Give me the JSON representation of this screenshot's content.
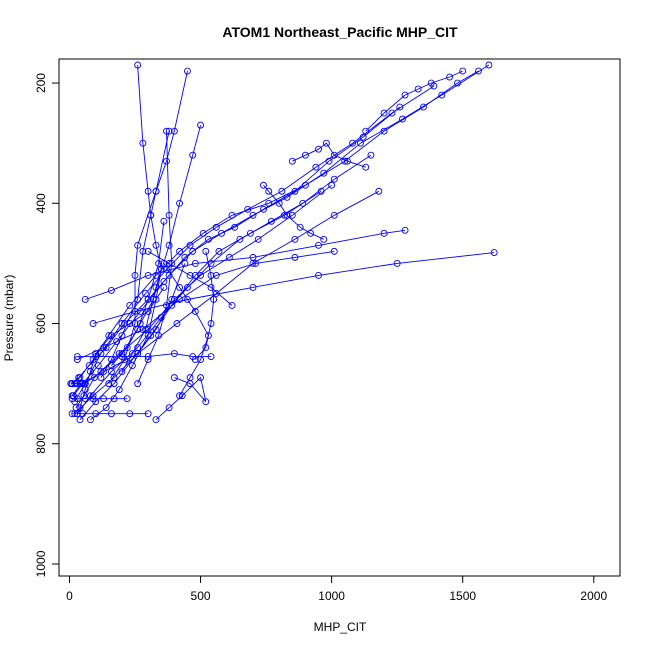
{
  "chart_data": {
    "type": "scatter",
    "title": "ATOM1 Northeast_Pacific MHP_CIT",
    "xlabel": "MHP_CIT",
    "ylabel": "Pressure (mbar)",
    "xlim": [
      -40,
      2100
    ],
    "ylim": [
      1020,
      160
    ],
    "y_reversed": true,
    "grid": false,
    "legend": "none",
    "xticks": [
      0,
      500,
      1000,
      1500,
      2000
    ],
    "yticks": [
      200,
      400,
      600,
      800,
      1000
    ],
    "xtick_labels": [
      "0",
      "500",
      "1000",
      "1500",
      "2000"
    ],
    "ytick_labels": [
      "200",
      "400",
      "600",
      "800",
      "1000"
    ],
    "series_color": "#0000ff",
    "series": [
      {
        "x": [
          10,
          40,
          90,
          150,
          230,
          330,
          420,
          510,
          620,
          760,
          900,
          1050,
          1200,
          1350,
          1480,
          1560
        ],
        "y": [
          700,
          690,
          660,
          620,
          570,
          520,
          480,
          450,
          420,
          400,
          370,
          330,
          280,
          240,
          200,
          180
        ]
      },
      {
        "x": [
          20,
          60,
          120,
          200,
          290,
          370,
          460,
          560,
          680,
          810,
          940,
          1080,
          1230,
          1390
        ],
        "y": [
          730,
          700,
          650,
          600,
          550,
          510,
          470,
          440,
          410,
          380,
          340,
          300,
          250,
          205
        ]
      },
      {
        "x": [
          30,
          80,
          160,
          260,
          350,
          450,
          540,
          650,
          770,
          890,
          1010,
          1150
        ],
        "y": [
          750,
          720,
          680,
          640,
          590,
          540,
          500,
          460,
          430,
          400,
          360,
          320
        ]
      },
      {
        "x": [
          15,
          50,
          110,
          180,
          270,
          360,
          440,
          530,
          630,
          740,
          860,
          990,
          1120,
          1260
        ],
        "y": [
          720,
          700,
          670,
          630,
          580,
          530,
          490,
          460,
          440,
          410,
          380,
          330,
          290,
          240
        ]
      },
      {
        "x": [
          40,
          100,
          170,
          240,
          310,
          390,
          480,
          570,
          690,
          820,
          960
        ],
        "y": [
          760,
          730,
          700,
          660,
          620,
          570,
          520,
          480,
          450,
          420,
          380
        ]
      },
      {
        "x": [
          5,
          35,
          75,
          140,
          210,
          300,
          380,
          470,
          580,
          700,
          830,
          970,
          1110,
          1270,
          1420,
          1600
        ],
        "y": [
          700,
          690,
          670,
          640,
          600,
          560,
          520,
          480,
          450,
          420,
          390,
          350,
          300,
          260,
          220,
          170
        ]
      },
      {
        "x": [
          25,
          55,
          95,
          190,
          300,
          400,
          500,
          610,
          720,
          850,
          1000
        ],
        "y": [
          740,
          720,
          690,
          650,
          610,
          560,
          520,
          490,
          460,
          420,
          370
        ]
      },
      {
        "x": [
          10,
          45,
          130,
          260,
          410,
          560,
          700,
          860,
          1010,
          1180
        ],
        "y": [
          720,
          700,
          680,
          650,
          600,
          550,
          500,
          460,
          420,
          380
        ]
      },
      {
        "x": [
          60,
          160,
          300,
          480,
          700,
          950,
          1200,
          1280
        ],
        "y": [
          560,
          545,
          520,
          500,
          490,
          470,
          450,
          445
        ]
      },
      {
        "x": [
          90,
          250,
          450,
          700,
          950,
          1250,
          1620
        ],
        "y": [
          600,
          580,
          560,
          540,
          520,
          500,
          482
        ]
      },
      {
        "x": [
          30,
          130,
          280,
          420,
          560,
          710,
          860,
          1010
        ],
        "y": [
          660,
          640,
          610,
          560,
          520,
          500,
          490,
          480
        ]
      },
      {
        "x": [
          620,
          540,
          460,
          380,
          300
        ],
        "y": [
          570,
          540,
          520,
          500,
          480
        ]
      },
      {
        "x": [
          120,
          160,
          200,
          260,
          280,
          310,
          330,
          370,
          400,
          450
        ],
        "y": [
          690,
          660,
          620,
          560,
          480,
          420,
          380,
          330,
          280,
          180
        ]
      },
      {
        "x": [
          200,
          240,
          290,
          330,
          380,
          420,
          470,
          500
        ],
        "y": [
          680,
          650,
          610,
          540,
          470,
          400,
          320,
          270
        ]
      },
      {
        "x": [
          160,
          220,
          270,
          320,
          350,
          330,
          310,
          300,
          280,
          260
        ],
        "y": [
          670,
          640,
          600,
          560,
          510,
          470,
          420,
          380,
          300,
          170
        ]
      },
      {
        "x": [
          260,
          300,
          340,
          370,
          390,
          380,
          370
        ],
        "y": [
          700,
          660,
          620,
          570,
          500,
          420,
          280
        ]
      },
      {
        "x": [
          150,
          210,
          250,
          250,
          260,
          330,
          380
        ],
        "y": [
          700,
          660,
          600,
          520,
          470,
          380,
          280
        ]
      },
      {
        "x": [
          40,
          60,
          80,
          100,
          160,
          230,
          300,
          360
        ],
        "y": [
          740,
          710,
          680,
          650,
          620,
          600,
          580,
          540
        ]
      },
      {
        "x": [
          20,
          90,
          170,
          260,
          330,
          390,
          440
        ],
        "y": [
          750,
          720,
          690,
          650,
          610,
          560,
          500
        ]
      },
      {
        "x": [
          60,
          120,
          200,
          260,
          300,
          340,
          360
        ],
        "y": [
          700,
          680,
          650,
          610,
          560,
          500,
          430
        ]
      },
      {
        "x": [
          80,
          140,
          190,
          240,
          300,
          330,
          350
        ],
        "y": [
          760,
          740,
          710,
          670,
          620,
          560,
          510
        ]
      },
      {
        "x": [
          420,
          460,
          500,
          530,
          480,
          420,
          360
        ],
        "y": [
          720,
          690,
          660,
          620,
          580,
          540,
          500
        ]
      },
      {
        "x": [
          330,
          380,
          430,
          500,
          520,
          460,
          400
        ],
        "y": [
          760,
          740,
          720,
          690,
          730,
          700,
          690
        ]
      },
      {
        "x": [
          480,
          520,
          540,
          550,
          540,
          520
        ],
        "y": [
          660,
          640,
          600,
          560,
          520,
          480
        ]
      },
      {
        "x": [
          10,
          20,
          30,
          40,
          50,
          60
        ],
        "y": [
          700,
          700,
          700,
          700,
          700,
          700
        ]
      },
      {
        "x": [
          10,
          30,
          60,
          90,
          130,
          170,
          220
        ],
        "y": [
          725,
          725,
          725,
          725,
          725,
          725,
          725
        ]
      },
      {
        "x": [
          10,
          50,
          100,
          160,
          230,
          300
        ],
        "y": [
          750,
          750,
          750,
          750,
          750,
          750
        ]
      },
      {
        "x": [
          30,
          100,
          200,
          300,
          400,
          470,
          540
        ],
        "y": [
          655,
          655,
          655,
          655,
          650,
          655,
          655
        ]
      },
      {
        "x": [
          850,
          900,
          950,
          980,
          1010,
          1060,
          1130
        ],
        "y": [
          330,
          320,
          310,
          300,
          320,
          330,
          340
        ]
      },
      {
        "x": [
          1130,
          1200,
          1280,
          1330,
          1380,
          1450,
          1500
        ],
        "y": [
          280,
          250,
          220,
          210,
          200,
          190,
          180
        ]
      },
      {
        "x": [
          740,
          760,
          800,
          830,
          880,
          920,
          970
        ],
        "y": [
          370,
          380,
          400,
          420,
          440,
          450,
          460
        ]
      }
    ]
  }
}
